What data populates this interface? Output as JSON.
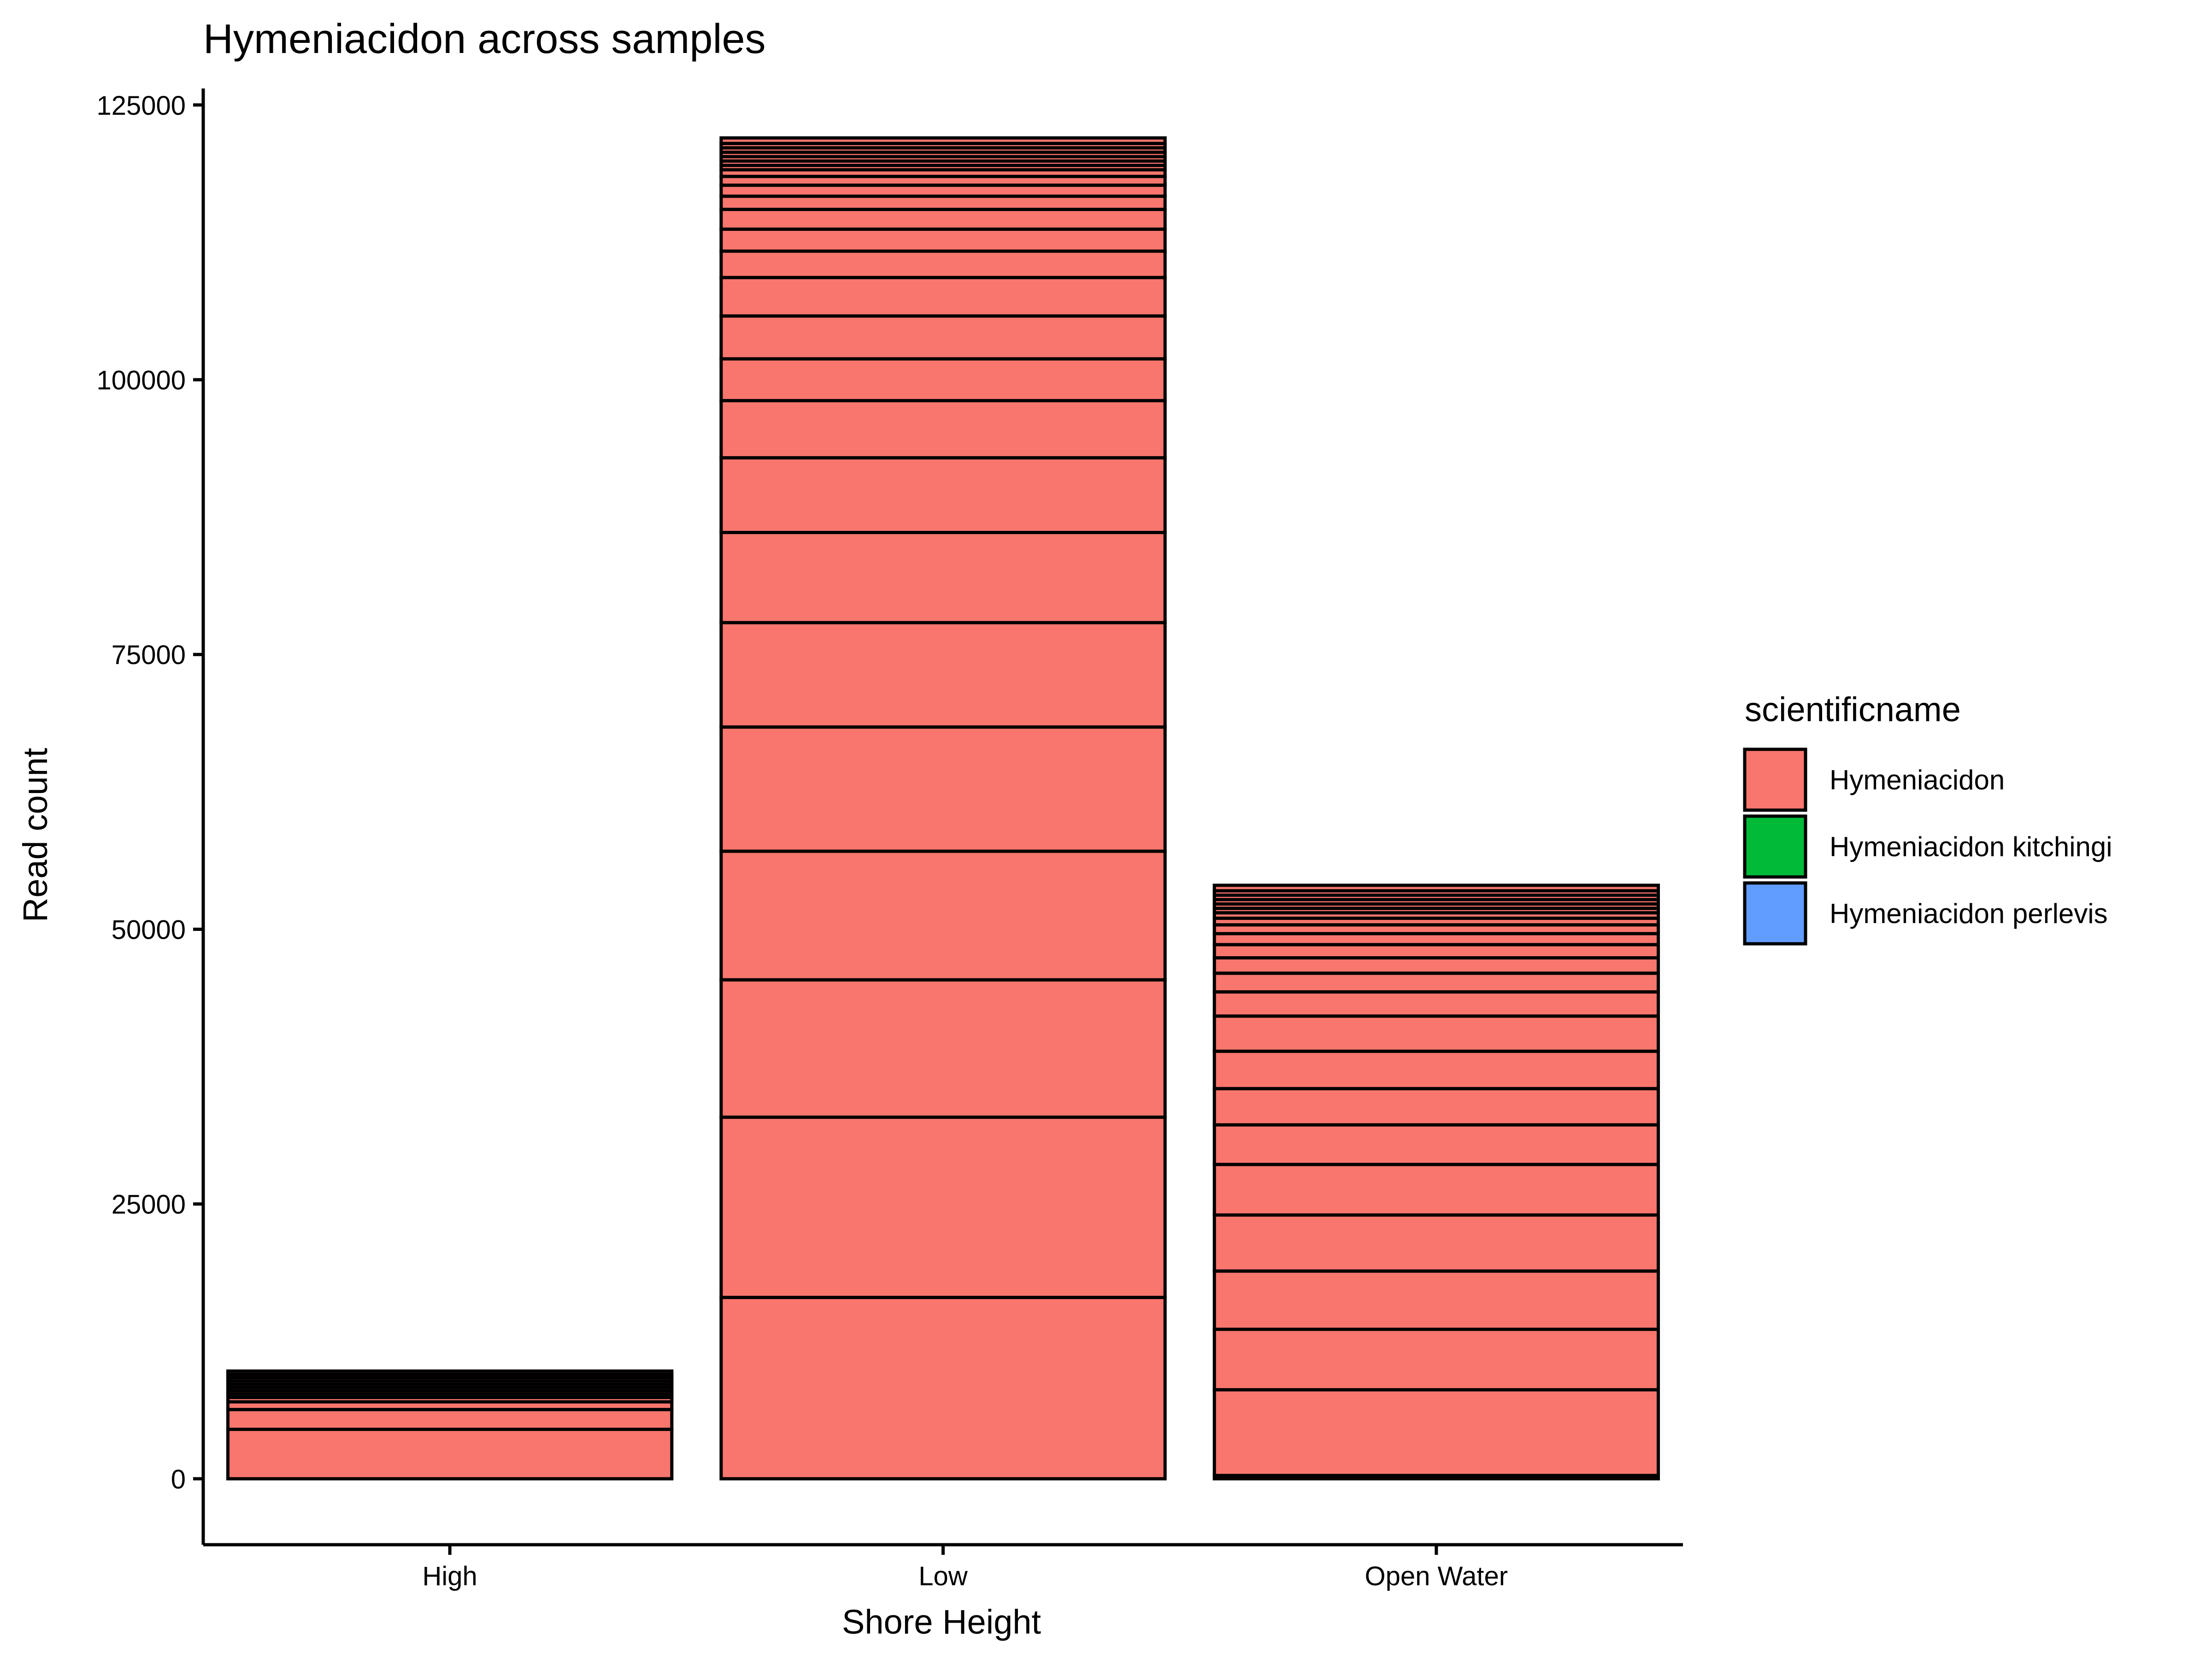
{
  "chart_data": {
    "type": "bar",
    "stacked": true,
    "title": "Hymeniacidon across samples",
    "xlabel": "Shore Height",
    "ylabel": "Read count",
    "categories": [
      "High",
      "Low",
      "Open Water"
    ],
    "ylim": [
      -6000,
      126500
    ],
    "yticks": [
      0,
      25000,
      50000,
      75000,
      100000,
      125000
    ],
    "ytick_labels": [
      "0",
      "25000",
      "50000",
      "75000",
      "100000",
      "125000"
    ],
    "grid": false,
    "legend": {
      "title": "scientificname",
      "position": "right",
      "entries": [
        {
          "name": "Hymeniacidon",
          "color": "#F8766D"
        },
        {
          "name": "Hymeniacidon kitchingi",
          "color": "#00BA38"
        },
        {
          "name": "Hymeniacidon perlevis",
          "color": "#619CFF"
        }
      ]
    },
    "outline_color": "#000000",
    "stacks": [
      {
        "category": "High",
        "total": 9800,
        "boundaries": [
          0,
          4500,
          6300,
          7000,
          7400,
          7700,
          8000,
          8300,
          8600,
          8900,
          9200,
          9500,
          9800
        ]
      },
      {
        "category": "Low",
        "total": 122000,
        "boundaries": [
          0,
          16500,
          32900,
          45400,
          57100,
          68400,
          77900,
          86100,
          92900,
          98100,
          101900,
          105800,
          109300,
          111700,
          113700,
          115500,
          116700,
          117700,
          118500,
          119100,
          119500,
          119900,
          120300,
          120700,
          121100,
          121500,
          122000
        ]
      },
      {
        "category": "Open Water",
        "total": 54000,
        "boundaries": [
          0,
          300,
          8100,
          13600,
          18900,
          24000,
          28600,
          32200,
          35500,
          38900,
          42100,
          44300,
          46000,
          47400,
          48600,
          49600,
          50400,
          51000,
          51500,
          51900,
          52300,
          52700,
          53100,
          53500,
          54000
        ]
      }
    ]
  }
}
